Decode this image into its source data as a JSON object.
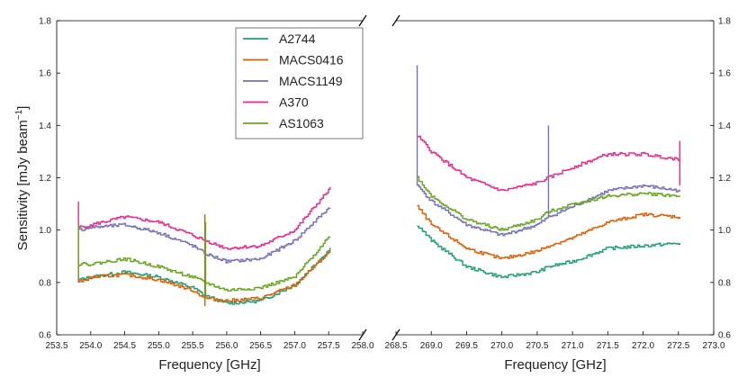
{
  "chart_data": {
    "type": "line",
    "ylabel": "Sensitivity [mJy beam$^{-1}$]",
    "ylabel_main": "Sensitivity [mJy beam",
    "ylabel_sup": "−1",
    "ylabel_close": "]",
    "ylim": [
      0.6,
      1.8
    ],
    "yticks": [
      "0.6",
      "0.8",
      "1.0",
      "1.2",
      "1.4",
      "1.6",
      "1.8"
    ],
    "panels": [
      {
        "xlabel": "Frequency [GHz]",
        "xlim": [
          253.5,
          258.0
        ],
        "xticks": [
          "253.5",
          "254.0",
          "254.5",
          "255.0",
          "255.5",
          "256.0",
          "256.5",
          "257.0",
          "257.5",
          "258.0"
        ]
      },
      {
        "xlabel": "Frequency [GHz]",
        "xlim": [
          268.5,
          273.0
        ],
        "xticks": [
          "268.5",
          "269.0",
          "269.5",
          "270.0",
          "270.5",
          "271.0",
          "271.5",
          "272.0",
          "272.5",
          "273.0"
        ]
      }
    ],
    "legend_position": "upper-center of left panel",
    "series": [
      {
        "name": "A2744",
        "color": "#1b9e77",
        "segments": [
          {
            "x": [
              253.82,
              254.0,
              254.5,
              255.0,
              255.5,
              255.68,
              256.0,
              256.5,
              257.0,
              257.52
            ],
            "y": [
              0.81,
              0.82,
              0.84,
              0.82,
              0.78,
              0.75,
              0.72,
              0.73,
              0.79,
              0.93
            ]
          },
          {
            "x": [
              268.8,
              269.0,
              269.5,
              270.0,
              270.5,
              270.66,
              271.0,
              271.5,
              272.0,
              272.52
            ],
            "y": [
              1.02,
              0.96,
              0.86,
              0.82,
              0.84,
              0.86,
              0.88,
              0.93,
              0.94,
              0.95
            ]
          }
        ]
      },
      {
        "name": "MACS0416",
        "color": "#d95f02",
        "segments": [
          {
            "x": [
              253.82,
              254.0,
              254.5,
              255.0,
              255.5,
              255.68,
              256.0,
              256.5,
              257.0,
              257.52
            ],
            "y": [
              0.8,
              0.82,
              0.83,
              0.81,
              0.77,
              0.74,
              0.73,
              0.74,
              0.79,
              0.92
            ]
          },
          {
            "x": [
              268.8,
              269.0,
              269.5,
              270.0,
              270.5,
              270.66,
              271.0,
              271.5,
              272.0,
              272.52
            ],
            "y": [
              1.09,
              1.02,
              0.93,
              0.89,
              0.92,
              0.94,
              0.97,
              1.03,
              1.06,
              1.05
            ]
          }
        ]
      },
      {
        "name": "MACS1149",
        "color": "#7570b3",
        "segments": [
          {
            "x": [
              253.82,
              254.0,
              254.5,
              255.0,
              255.5,
              255.68,
              256.0,
              256.5,
              257.0,
              257.52
            ],
            "y": [
              1.0,
              1.01,
              1.02,
              0.99,
              0.94,
              0.91,
              0.88,
              0.89,
              0.96,
              1.09
            ]
          },
          {
            "x": [
              268.8,
              269.0,
              269.5,
              270.0,
              270.5,
              270.66,
              271.0,
              271.5,
              272.0,
              272.52
            ],
            "y": [
              1.17,
              1.11,
              1.02,
              0.98,
              1.02,
              1.05,
              1.09,
              1.15,
              1.17,
              1.15
            ]
          }
        ]
      },
      {
        "name": "A370",
        "color": "#e7298a",
        "segments": [
          {
            "x": [
              253.82,
              254.0,
              254.5,
              255.0,
              255.5,
              255.68,
              256.0,
              256.5,
              257.0,
              257.52
            ],
            "y": [
              1.01,
              1.02,
              1.05,
              1.03,
              0.98,
              0.96,
              0.93,
              0.94,
              1.0,
              1.16
            ]
          },
          {
            "x": [
              268.8,
              269.0,
              269.5,
              270.0,
              270.5,
              270.66,
              271.0,
              271.5,
              272.0,
              272.52
            ],
            "y": [
              1.36,
              1.3,
              1.2,
              1.15,
              1.18,
              1.2,
              1.24,
              1.29,
              1.29,
              1.27
            ]
          }
        ]
      },
      {
        "name": "AS1063",
        "color": "#66a61e",
        "segments": [
          {
            "x": [
              253.82,
              254.0,
              254.5,
              255.0,
              255.5,
              255.68,
              256.0,
              256.5,
              257.0,
              257.52
            ],
            "y": [
              0.87,
              0.87,
              0.89,
              0.86,
              0.82,
              0.8,
              0.77,
              0.78,
              0.82,
              0.98
            ]
          },
          {
            "x": [
              268.8,
              269.0,
              269.5,
              270.0,
              270.5,
              270.66,
              271.0,
              271.5,
              272.0,
              272.52
            ],
            "y": [
              1.2,
              1.13,
              1.04,
              1.0,
              1.04,
              1.07,
              1.1,
              1.13,
              1.14,
              1.13
            ]
          }
        ]
      }
    ],
    "spikes": [
      {
        "x": 253.82,
        "ymin": 0.8,
        "ymax": 1.11,
        "color": "#e7298a"
      },
      {
        "x": 253.82,
        "ymin": 0.81,
        "ymax": 1.02,
        "color": "#66a61e"
      },
      {
        "x": 255.68,
        "ymin": 0.71,
        "ymax": 1.06,
        "color": "#d95f02"
      },
      {
        "x": 255.69,
        "ymin": 0.74,
        "ymax": 1.03,
        "color": "#66a61e"
      },
      {
        "x": 268.8,
        "ymin": 1.17,
        "ymax": 1.63,
        "color": "#7570b3"
      },
      {
        "x": 270.66,
        "ymin": 1.05,
        "ymax": 1.4,
        "color": "#7570b3"
      },
      {
        "x": 272.52,
        "ymin": 1.17,
        "ymax": 1.34,
        "color": "#e7298a"
      }
    ]
  }
}
